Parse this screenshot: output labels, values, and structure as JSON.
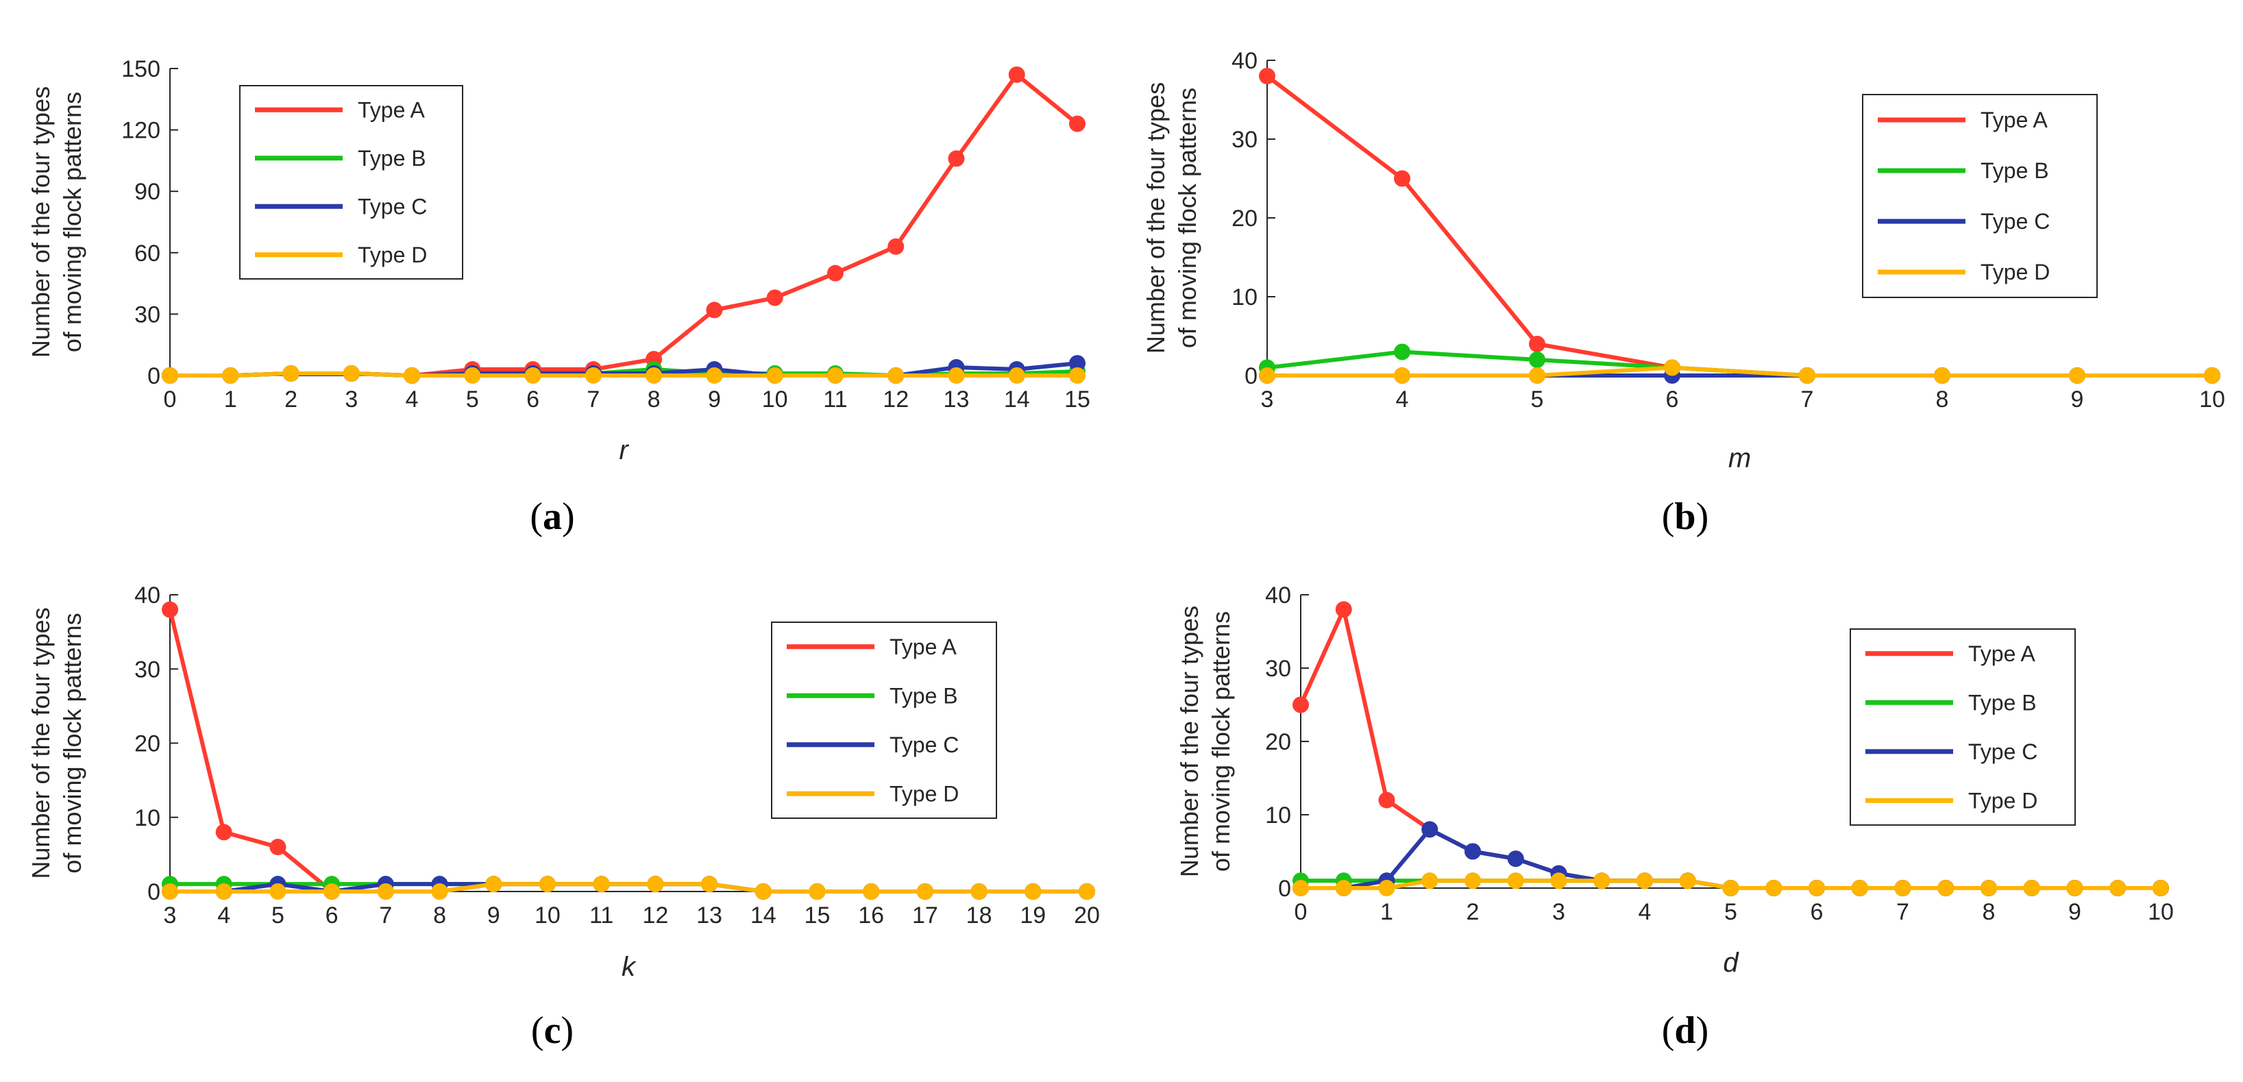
{
  "figure": {
    "colors": {
      "Type A": "#ff3b2f",
      "Type B": "#18c418",
      "Type C": "#2a3aa8",
      "Type D": "#ffb400",
      "axis": "#262626"
    }
  },
  "chart_data": [
    {
      "id": "a",
      "type": "line",
      "caption": "a",
      "xlabel": "r",
      "ylabel": [
        "Number of the four types",
        "of moving flock patterns"
      ],
      "x": [
        0,
        1,
        2,
        3,
        4,
        5,
        6,
        7,
        8,
        9,
        10,
        11,
        12,
        13,
        14,
        15
      ],
      "xticks": [
        "0",
        "1",
        "2",
        "3",
        "4",
        "5",
        "6",
        "7",
        "8",
        "9",
        "10",
        "11",
        "12",
        "13",
        "14",
        "15"
      ],
      "xlim": [
        0,
        15
      ],
      "ylim": [
        0,
        150
      ],
      "yticks": [
        "0",
        "30",
        "60",
        "90",
        "120",
        "150"
      ],
      "legend_position": "top-left",
      "series": [
        {
          "name": "Type A",
          "values": [
            0,
            0,
            1,
            1,
            0,
            3,
            3,
            3,
            8,
            32,
            38,
            50,
            63,
            106,
            147,
            123
          ]
        },
        {
          "name": "Type B",
          "values": [
            0,
            0,
            1,
            1,
            0,
            1,
            1,
            1,
            3,
            1,
            1,
            1,
            0,
            1,
            1,
            2
          ]
        },
        {
          "name": "Type C",
          "values": [
            0,
            0,
            1,
            1,
            0,
            1,
            1,
            1,
            1,
            3,
            0,
            0,
            0,
            4,
            3,
            6
          ]
        },
        {
          "name": "Type D",
          "values": [
            0,
            0,
            1,
            1,
            0,
            0,
            0,
            0,
            0,
            0,
            0,
            0,
            0,
            0,
            0,
            0
          ]
        }
      ]
    },
    {
      "id": "b",
      "type": "line",
      "caption": "b",
      "xlabel": "m",
      "ylabel": [
        "Number of the four types",
        "of moving flock patterns"
      ],
      "x": [
        3,
        4,
        5,
        6,
        7,
        8,
        9,
        10
      ],
      "xticks": [
        "3",
        "4",
        "5",
        "6",
        "7",
        "8",
        "9",
        "10"
      ],
      "xlim": [
        3,
        10
      ],
      "ylim": [
        0,
        40
      ],
      "yticks": [
        "0",
        "10",
        "20",
        "30",
        "40"
      ],
      "legend_position": "top-right",
      "series": [
        {
          "name": "Type A",
          "values": [
            38,
            25,
            4,
            1,
            0,
            0,
            0,
            0
          ]
        },
        {
          "name": "Type B",
          "values": [
            1,
            3,
            2,
            1,
            0,
            0,
            0,
            0
          ]
        },
        {
          "name": "Type C",
          "values": [
            0,
            0,
            0,
            0,
            0,
            0,
            0,
            0
          ]
        },
        {
          "name": "Type D",
          "values": [
            0,
            0,
            0,
            1,
            0,
            0,
            0,
            0
          ]
        }
      ]
    },
    {
      "id": "c",
      "type": "line",
      "caption": "c",
      "xlabel": "k",
      "ylabel": [
        "Number of the four types",
        "of moving flock patterns"
      ],
      "x": [
        3,
        4,
        5,
        6,
        7,
        8,
        9,
        10,
        11,
        12,
        13,
        14,
        15,
        16,
        17,
        18,
        19,
        20
      ],
      "xticks": [
        "3",
        "4",
        "5",
        "6",
        "7",
        "8",
        "9",
        "10",
        "11",
        "12",
        "13",
        "14",
        "15",
        "16",
        "17",
        "18",
        "19",
        "20"
      ],
      "xlim": [
        3,
        20
      ],
      "ylim": [
        0,
        40
      ],
      "yticks": [
        "0",
        "10",
        "20",
        "30",
        "40"
      ],
      "legend_position": "right",
      "series": [
        {
          "name": "Type A",
          "values": [
            38,
            8,
            6,
            0,
            0,
            0,
            1,
            1,
            1,
            1,
            1,
            0,
            0,
            0,
            0,
            0,
            0,
            0
          ]
        },
        {
          "name": "Type B",
          "values": [
            1,
            1,
            1,
            1,
            1,
            1,
            1,
            1,
            1,
            1,
            1,
            0,
            0,
            0,
            0,
            0,
            0,
            0
          ]
        },
        {
          "name": "Type C",
          "values": [
            0,
            0,
            1,
            0,
            1,
            1,
            1,
            1,
            1,
            1,
            1,
            0,
            0,
            0,
            0,
            0,
            0,
            0
          ]
        },
        {
          "name": "Type D",
          "values": [
            0,
            0,
            0,
            0,
            0,
            0,
            1,
            1,
            1,
            1,
            1,
            0,
            0,
            0,
            0,
            0,
            0,
            0
          ]
        }
      ]
    },
    {
      "id": "d",
      "type": "line",
      "caption": "d",
      "xlabel": "d",
      "ylabel": [
        "Number of the four types",
        "of moving flock patterns"
      ],
      "x": [
        0,
        0.5,
        1,
        1.5,
        2,
        2.5,
        3,
        3.5,
        4,
        4.5,
        5,
        5.5,
        6,
        6.5,
        7,
        7.5,
        8,
        8.5,
        9,
        9.5,
        10
      ],
      "xticks": [
        "0",
        "1",
        "2",
        "3",
        "4",
        "5",
        "6",
        "7",
        "8",
        "9",
        "10"
      ],
      "xlim": [
        0,
        10
      ],
      "ylim": [
        0,
        40
      ],
      "yticks": [
        "0",
        "10",
        "20",
        "30",
        "40"
      ],
      "legend_position": "right",
      "series": [
        {
          "name": "Type A",
          "values": [
            25,
            38,
            12,
            8,
            5,
            4,
            2,
            1,
            1,
            1,
            0,
            0,
            0,
            0,
            0,
            0,
            0,
            0,
            0,
            0,
            0
          ]
        },
        {
          "name": "Type B",
          "values": [
            1,
            1,
            1,
            1,
            1,
            1,
            1,
            1,
            1,
            1,
            0,
            0,
            0,
            0,
            0,
            0,
            0,
            0,
            0,
            0,
            0
          ]
        },
        {
          "name": "Type C",
          "values": [
            0,
            0,
            1,
            8,
            5,
            4,
            2,
            1,
            1,
            1,
            0,
            0,
            0,
            0,
            0,
            0,
            0,
            0,
            0,
            0,
            0
          ]
        },
        {
          "name": "Type D",
          "values": [
            0,
            0,
            0,
            1,
            1,
            1,
            1,
            1,
            1,
            1,
            0,
            0,
            0,
            0,
            0,
            0,
            0,
            0,
            0,
            0,
            0
          ]
        }
      ]
    }
  ]
}
